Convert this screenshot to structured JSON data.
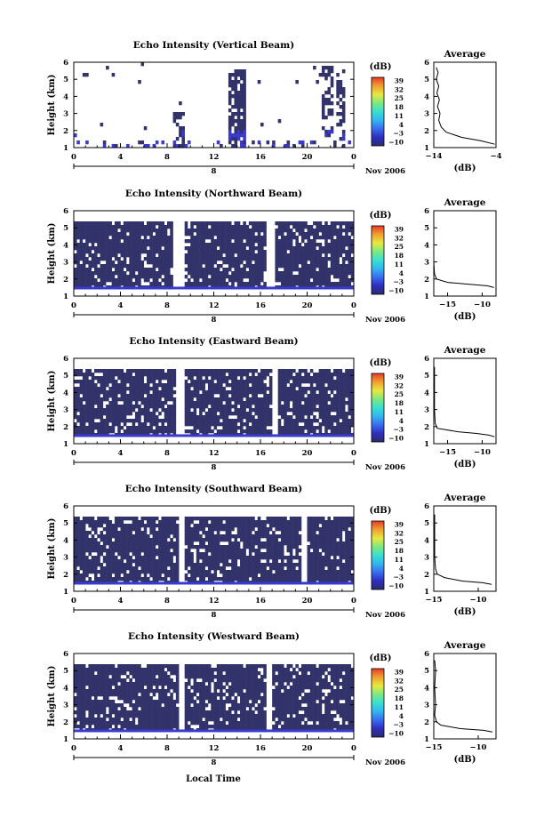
{
  "figure": {
    "xlabel": "Local Time",
    "date_label": "Nov 2006",
    "day_label": "8",
    "colorbar_unit": "(dB)",
    "colorbar_ticks": [
      "39",
      "32",
      "25",
      "18",
      "11",
      "4",
      "−3",
      "−10"
    ],
    "avg_title": "Average",
    "avg_xlabel": "(dB)",
    "colors": {
      "echo": "#33336b",
      "near_ground": "#3a3ad0",
      "colormap": [
        "#2b2b6e",
        "#2e2ebf",
        "#3a6cf0",
        "#33b5f0",
        "#38e0d0",
        "#7fe87f",
        "#e8e840",
        "#f0a030",
        "#e83a2a"
      ]
    }
  },
  "chart_data": [
    {
      "type": "heatmap",
      "title": "Echo Intensity (Vertical Beam)",
      "ylabel": "Height (km)",
      "x_ticks": [
        "0",
        "4",
        "8",
        "12",
        "16",
        "20",
        "0"
      ],
      "y_ticks": [
        "1",
        "2",
        "3",
        "4",
        "5",
        "6"
      ],
      "xlim_hours": [
        0,
        24
      ],
      "ylim_km": [
        1,
        6
      ],
      "clim_db": [
        -10,
        39
      ],
      "coverage": "sparse echoes below 2 km; columns near 13-14 h and 21-24 h",
      "avg_profile": {
        "xlim_db": [
          -14,
          -4
        ],
        "x_ticks": [
          "−14",
          "−4"
        ],
        "y_ticks": [
          "1",
          "2",
          "3",
          "4",
          "5",
          "6"
        ],
        "db": [
          -4.2,
          -6.5,
          -9.5,
          -12.0,
          -12.8,
          -13.2,
          -13.0,
          -13.4,
          -13.1,
          -13.5,
          -13.2,
          -13.6,
          -13.3,
          -13.6
        ],
        "height_km": [
          1.2,
          1.4,
          1.6,
          1.9,
          2.2,
          2.6,
          3.0,
          3.4,
          3.8,
          4.2,
          4.6,
          5.0,
          5.4,
          5.7
        ]
      }
    },
    {
      "type": "heatmap",
      "title": "Echo Intensity (Northward Beam)",
      "ylabel": "Height (km)",
      "x_ticks": [
        "0",
        "4",
        "8",
        "12",
        "16",
        "20",
        "0"
      ],
      "y_ticks": [
        "1",
        "2",
        "3",
        "4",
        "5",
        "6"
      ],
      "xlim_hours": [
        0,
        24
      ],
      "ylim_km": [
        1,
        6
      ],
      "clim_db": [
        -10,
        39
      ],
      "gaps_hours": [
        [
          8.6,
          9.4
        ],
        [
          16.6,
          17.2
        ]
      ],
      "avg_profile": {
        "xlim_db": [
          -17,
          -8
        ],
        "x_ticks": [
          "−15",
          "−10"
        ],
        "y_ticks": [
          "1",
          "2",
          "3",
          "4",
          "5",
          "6"
        ],
        "db": [
          -8.3,
          -9.2,
          -12.0,
          -15.0,
          -16.6,
          -16.9,
          -17.0,
          -17.0,
          -17.0,
          -17.0
        ],
        "height_km": [
          1.5,
          1.6,
          1.7,
          1.8,
          2.0,
          2.3,
          3.0,
          4.0,
          5.0,
          5.5
        ]
      }
    },
    {
      "type": "heatmap",
      "title": "Echo Intensity (Eastward Beam)",
      "ylabel": "Height (km)",
      "x_ticks": [
        "0",
        "4",
        "8",
        "12",
        "16",
        "20",
        "0"
      ],
      "y_ticks": [
        "1",
        "2",
        "3",
        "4",
        "5",
        "6"
      ],
      "xlim_hours": [
        0,
        24
      ],
      "ylim_km": [
        1,
        6
      ],
      "clim_db": [
        -10,
        39
      ],
      "gaps_hours": [
        [
          8.7,
          9.5
        ],
        [
          16.9,
          17.5
        ]
      ],
      "avg_profile": {
        "xlim_db": [
          -17,
          -8
        ],
        "x_ticks": [
          "−15",
          "−10"
        ],
        "y_ticks": [
          "1",
          "2",
          "3",
          "4",
          "5",
          "6"
        ],
        "db": [
          -8.2,
          -9.0,
          -10.8,
          -13.5,
          -16.5,
          -16.8,
          -16.9,
          -16.9,
          -16.9,
          -16.9
        ],
        "height_km": [
          1.4,
          1.5,
          1.6,
          1.7,
          1.9,
          2.2,
          3.0,
          4.0,
          5.0,
          5.5
        ]
      }
    },
    {
      "type": "heatmap",
      "title": "Echo Intensity (Southward Beam)",
      "ylabel": "Height (km)",
      "x_ticks": [
        "0",
        "4",
        "8",
        "12",
        "16",
        "20",
        "0"
      ],
      "y_ticks": [
        "1",
        "2",
        "3",
        "4",
        "5",
        "6"
      ],
      "xlim_hours": [
        0,
        24
      ],
      "ylim_km": [
        1,
        6
      ],
      "clim_db": [
        -10,
        39
      ],
      "gaps_hours": [
        [
          9.0,
          9.4
        ],
        [
          19.5,
          19.9
        ]
      ],
      "avg_profile": {
        "xlim_db": [
          -15,
          -8
        ],
        "x_ticks": [
          "−15",
          "−10"
        ],
        "y_ticks": [
          "1",
          "2",
          "3",
          "4",
          "5",
          "6"
        ],
        "db": [
          -8.5,
          -9.5,
          -11.8,
          -13.8,
          -14.6,
          -14.8,
          -14.9,
          -14.9,
          -14.9,
          -14.9
        ],
        "height_km": [
          1.4,
          1.5,
          1.6,
          1.8,
          2.0,
          2.3,
          3.0,
          4.0,
          5.0,
          5.5
        ]
      }
    },
    {
      "type": "heatmap",
      "title": "Echo Intensity (Westward Beam)",
      "ylabel": "Height (km)",
      "x_ticks": [
        "0",
        "4",
        "8",
        "12",
        "16",
        "20",
        "0"
      ],
      "y_ticks": [
        "1",
        "2",
        "3",
        "4",
        "5",
        "6"
      ],
      "xlim_hours": [
        0,
        24
      ],
      "ylim_km": [
        1,
        6
      ],
      "clim_db": [
        -10,
        39
      ],
      "gaps_hours": [
        [
          9.0,
          9.4
        ],
        [
          16.6,
          17.0
        ]
      ],
      "avg_profile": {
        "xlim_db": [
          -15,
          -8
        ],
        "x_ticks": [
          "−15",
          "−10"
        ],
        "y_ticks": [
          "1",
          "2",
          "3",
          "4",
          "5",
          "6"
        ],
        "db": [
          -8.4,
          -9.4,
          -12.0,
          -14.2,
          -14.7,
          -14.9,
          -14.8,
          -14.9,
          -14.8,
          -14.9
        ],
        "height_km": [
          1.4,
          1.5,
          1.6,
          1.8,
          2.0,
          2.4,
          3.0,
          4.0,
          5.0,
          5.6
        ]
      }
    }
  ]
}
